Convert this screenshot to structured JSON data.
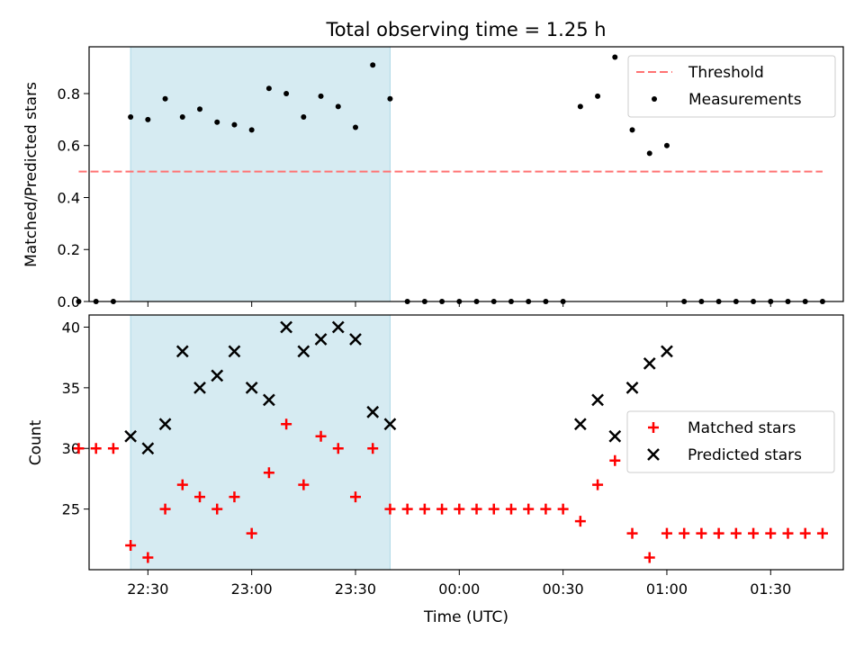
{
  "title": "Total observing time = 1.25 h",
  "chart_data": [
    {
      "type": "scatter",
      "panel": "top",
      "ylabel": "Matched/Predicted stars",
      "ylim": [
        0,
        0.98
      ],
      "yticks": [
        "0.0",
        "0.2",
        "0.4",
        "0.6",
        "0.8"
      ],
      "xlim": [
        "22:13",
        "01:51"
      ],
      "grid": false,
      "legend_position": "top-right",
      "shaded_interval": [
        "22:25",
        "23:40"
      ],
      "threshold": {
        "name": "Threshold",
        "value": 0.5,
        "x_range": [
          "22:10",
          "01:45"
        ],
        "color": "#ff7373"
      },
      "series": [
        {
          "name": "Measurements",
          "color": "#000000",
          "points": [
            [
              "22:10",
              0.0
            ],
            [
              "22:15",
              0.0
            ],
            [
              "22:20",
              0.0
            ],
            [
              "22:25",
              0.71
            ],
            [
              "22:30",
              0.7
            ],
            [
              "22:35",
              0.78
            ],
            [
              "22:40",
              0.71
            ],
            [
              "22:45",
              0.74
            ],
            [
              "22:50",
              0.69
            ],
            [
              "22:55",
              0.68
            ],
            [
              "23:00",
              0.66
            ],
            [
              "23:05",
              0.82
            ],
            [
              "23:10",
              0.8
            ],
            [
              "23:15",
              0.71
            ],
            [
              "23:20",
              0.79
            ],
            [
              "23:25",
              0.75
            ],
            [
              "23:30",
              0.67
            ],
            [
              "23:35",
              0.91
            ],
            [
              "23:40",
              0.78
            ],
            [
              "23:45",
              0.0
            ],
            [
              "23:50",
              0.0
            ],
            [
              "23:55",
              0.0
            ],
            [
              "00:00",
              0.0
            ],
            [
              "00:05",
              0.0
            ],
            [
              "00:10",
              0.0
            ],
            [
              "00:15",
              0.0
            ],
            [
              "00:20",
              0.0
            ],
            [
              "00:25",
              0.0
            ],
            [
              "00:30",
              0.0
            ],
            [
              "00:35",
              0.75
            ],
            [
              "00:40",
              0.79
            ],
            [
              "00:45",
              0.94
            ],
            [
              "00:50",
              0.66
            ],
            [
              "00:55",
              0.57
            ],
            [
              "01:00",
              0.6
            ],
            [
              "01:05",
              0.0
            ],
            [
              "01:10",
              0.0
            ],
            [
              "01:15",
              0.0
            ],
            [
              "01:20",
              0.0
            ],
            [
              "01:25",
              0.0
            ],
            [
              "01:30",
              0.0
            ],
            [
              "01:35",
              0.0
            ],
            [
              "01:40",
              0.0
            ],
            [
              "01:45",
              0.0
            ]
          ]
        }
      ],
      "legend": [
        "Threshold",
        "Measurements"
      ]
    },
    {
      "type": "scatter",
      "panel": "bottom",
      "xlabel": "Time (UTC)",
      "ylabel": "Count",
      "ylim": [
        20,
        41
      ],
      "yticks": [
        "25",
        "30",
        "35",
        "40"
      ],
      "xticks": [
        "22:30",
        "23:00",
        "23:30",
        "00:00",
        "00:30",
        "01:00",
        "01:30"
      ],
      "xlim": [
        "22:13",
        "01:51"
      ],
      "grid": false,
      "legend_position": "center-right",
      "shaded_interval": [
        "22:25",
        "23:40"
      ],
      "series": [
        {
          "name": "Matched stars",
          "marker": "plus",
          "color": "#ff0000",
          "points": [
            [
              "22:10",
              30
            ],
            [
              "22:15",
              30
            ],
            [
              "22:20",
              30
            ],
            [
              "22:25",
              22
            ],
            [
              "22:30",
              21
            ],
            [
              "22:35",
              25
            ],
            [
              "22:40",
              27
            ],
            [
              "22:45",
              26
            ],
            [
              "22:50",
              25
            ],
            [
              "22:55",
              26
            ],
            [
              "23:00",
              23
            ],
            [
              "23:05",
              28
            ],
            [
              "23:10",
              32
            ],
            [
              "23:15",
              27
            ],
            [
              "23:20",
              31
            ],
            [
              "23:25",
              30
            ],
            [
              "23:30",
              26
            ],
            [
              "23:35",
              30
            ],
            [
              "23:40",
              25
            ],
            [
              "23:45",
              25
            ],
            [
              "23:50",
              25
            ],
            [
              "23:55",
              25
            ],
            [
              "00:00",
              25
            ],
            [
              "00:05",
              25
            ],
            [
              "00:10",
              25
            ],
            [
              "00:15",
              25
            ],
            [
              "00:20",
              25
            ],
            [
              "00:25",
              25
            ],
            [
              "00:30",
              25
            ],
            [
              "00:35",
              24
            ],
            [
              "00:40",
              27
            ],
            [
              "00:45",
              29
            ],
            [
              "00:50",
              23
            ],
            [
              "00:55",
              21
            ],
            [
              "01:00",
              23
            ],
            [
              "01:05",
              23
            ],
            [
              "01:10",
              23
            ],
            [
              "01:15",
              23
            ],
            [
              "01:20",
              23
            ],
            [
              "01:25",
              23
            ],
            [
              "01:30",
              23
            ],
            [
              "01:35",
              23
            ],
            [
              "01:40",
              23
            ],
            [
              "01:45",
              23
            ]
          ]
        },
        {
          "name": "Predicted stars",
          "marker": "x",
          "color": "#000000",
          "points": [
            [
              "22:25",
              31
            ],
            [
              "22:30",
              30
            ],
            [
              "22:35",
              32
            ],
            [
              "22:40",
              38
            ],
            [
              "22:45",
              35
            ],
            [
              "22:50",
              36
            ],
            [
              "22:55",
              38
            ],
            [
              "23:00",
              35
            ],
            [
              "23:05",
              34
            ],
            [
              "23:10",
              40
            ],
            [
              "23:15",
              38
            ],
            [
              "23:20",
              39
            ],
            [
              "23:25",
              40
            ],
            [
              "23:30",
              39
            ],
            [
              "23:35",
              33
            ],
            [
              "23:40",
              32
            ],
            [
              "00:35",
              32
            ],
            [
              "00:40",
              34
            ],
            [
              "00:45",
              31
            ],
            [
              "00:50",
              35
            ],
            [
              "00:55",
              37
            ],
            [
              "01:00",
              38
            ]
          ]
        }
      ],
      "legend": [
        "Matched stars",
        "Predicted stars"
      ]
    }
  ]
}
